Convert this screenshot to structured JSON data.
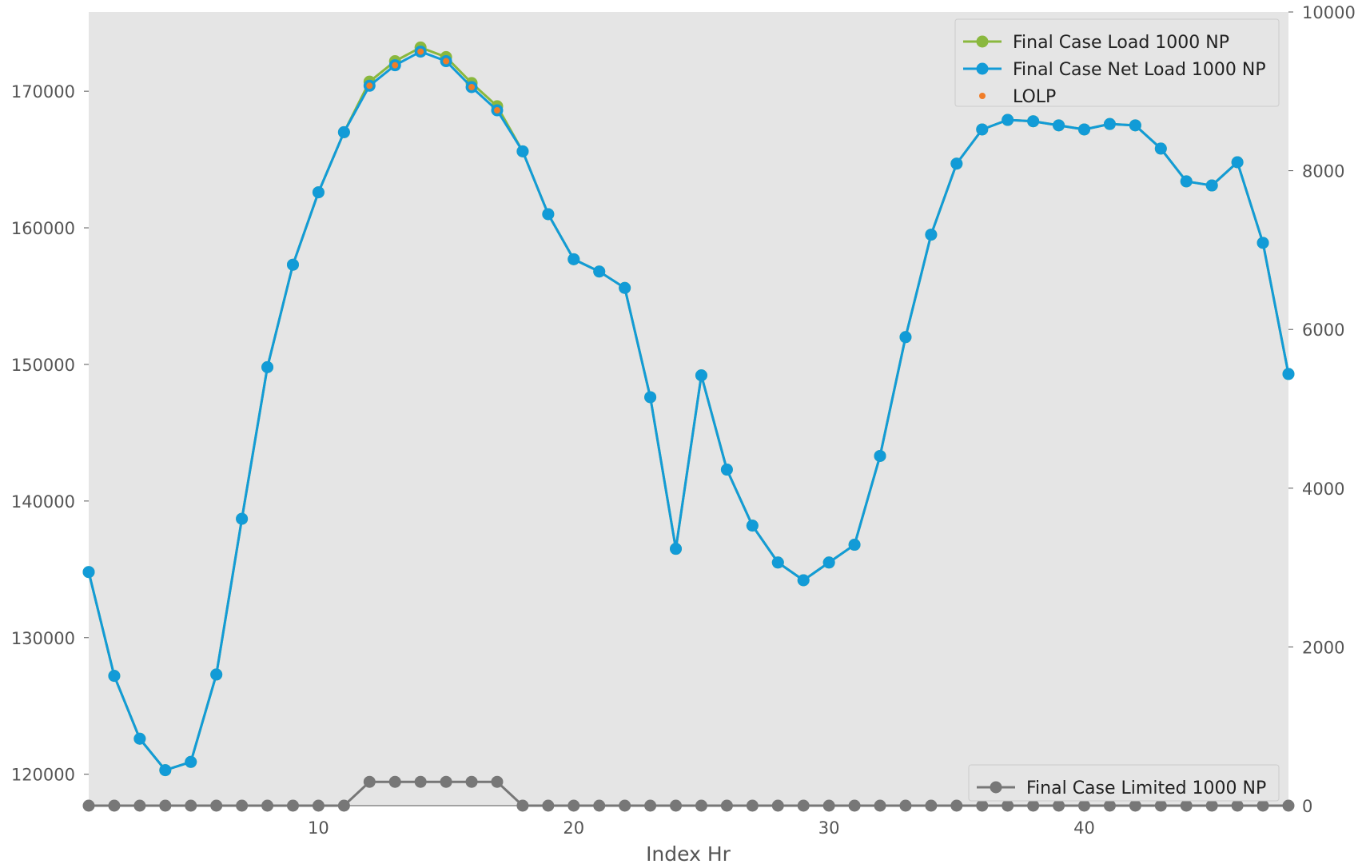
{
  "chart_data": {
    "type": "line",
    "xlabel": "Index Hr",
    "xlim": [
      1,
      48
    ],
    "x_ticks": [
      10,
      20,
      30,
      40
    ],
    "x": [
      1,
      2,
      3,
      4,
      5,
      6,
      7,
      8,
      9,
      10,
      11,
      12,
      13,
      14,
      15,
      16,
      17,
      18,
      19,
      20,
      21,
      22,
      23,
      24,
      25,
      26,
      27,
      28,
      29,
      30,
      31,
      32,
      33,
      34,
      35,
      36,
      37,
      38,
      39,
      40,
      41,
      42,
      43,
      44,
      45,
      46,
      47,
      48
    ],
    "left_axis": {
      "ylim": [
        117700,
        175800
      ],
      "ticks": [
        120000,
        130000,
        140000,
        150000,
        160000,
        170000
      ]
    },
    "right_axis": {
      "ylim": [
        0,
        10000
      ],
      "ticks": [
        0,
        2000,
        4000,
        6000,
        8000,
        10000
      ]
    },
    "series": [
      {
        "name": "Final Case Load 1000 NP",
        "axis": "left",
        "color": "#8ab83e",
        "marker": "circle",
        "values": [
          134800,
          127200,
          122600,
          120300,
          120900,
          127300,
          138700,
          149800,
          157300,
          162600,
          167000,
          170700,
          172200,
          173200,
          172500,
          170600,
          168900,
          165600,
          161000,
          157700,
          156800,
          155600,
          147600,
          136500,
          149200,
          142300,
          138200,
          135500,
          134200,
          135500,
          136800,
          143300,
          152000,
          159500,
          164700,
          167200,
          167900,
          167800,
          167500,
          167200,
          167600,
          167500,
          165800,
          163400,
          163100,
          164800,
          158900,
          149300
        ]
      },
      {
        "name": "Final Case Net Load 1000 NP",
        "axis": "left",
        "color": "#129bd7",
        "marker": "circle",
        "values": [
          134800,
          127200,
          122600,
          120300,
          120900,
          127300,
          138700,
          149800,
          157300,
          162600,
          167000,
          170400,
          171900,
          172900,
          172200,
          170300,
          168600,
          165600,
          161000,
          157700,
          156800,
          155600,
          147600,
          136500,
          149200,
          142300,
          138200,
          135500,
          134200,
          135500,
          136800,
          143300,
          152000,
          159500,
          164700,
          167200,
          167900,
          167800,
          167500,
          167200,
          167600,
          167500,
          165800,
          163400,
          163100,
          164800,
          158900,
          149300
        ]
      },
      {
        "name": "LOLP",
        "axis": "left",
        "color": "#f07d28",
        "marker": "dot",
        "points": [
          [
            12,
            170400
          ],
          [
            13,
            171900
          ],
          [
            14,
            172900
          ],
          [
            15,
            172200
          ],
          [
            16,
            170300
          ],
          [
            17,
            168600
          ]
        ]
      },
      {
        "name": "Final Case Limited 1000 NP",
        "axis": "right",
        "color": "#777777",
        "marker": "circle",
        "values": [
          0,
          0,
          0,
          0,
          0,
          0,
          0,
          0,
          0,
          0,
          0,
          300,
          300,
          300,
          300,
          300,
          300,
          0,
          0,
          0,
          0,
          0,
          0,
          0,
          0,
          0,
          0,
          0,
          0,
          0,
          0,
          0,
          0,
          0,
          0,
          0,
          0,
          0,
          0,
          0,
          0,
          0,
          0,
          0,
          0,
          0,
          0,
          0
        ]
      }
    ],
    "legends": [
      {
        "placement": "top-right",
        "entries": [
          "Final Case Load 1000 NP",
          "Final Case Net Load 1000 NP",
          "LOLP"
        ]
      },
      {
        "placement": "bottom-right",
        "entries": [
          "Final Case Limited 1000 NP"
        ]
      }
    ],
    "grid": false,
    "colors": {
      "plot_background": "#e5e5e5",
      "axis_text": "#555555"
    }
  }
}
